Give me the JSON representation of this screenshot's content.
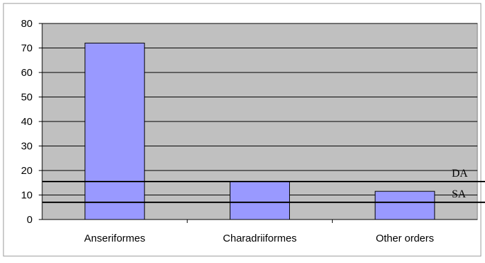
{
  "chart_data": {
    "type": "bar",
    "categories": [
      "Anseriformes",
      "Charadriiformes",
      "Other orders"
    ],
    "values": [
      72,
      15.5,
      11.5
    ],
    "ylim": [
      0,
      80
    ],
    "yticks": [
      0,
      10,
      20,
      30,
      40,
      50,
      60,
      70,
      80
    ],
    "grid": true,
    "reference_lines": [
      {
        "label": "DA",
        "value": 15.5
      },
      {
        "label": "SA",
        "value": 7
      }
    ],
    "colors": {
      "bar_fill": "#9999ff",
      "bar_stroke": "#000000",
      "plot_background": "#c0c0c0",
      "gridline": "#000000",
      "reference_line": "#000000"
    }
  }
}
